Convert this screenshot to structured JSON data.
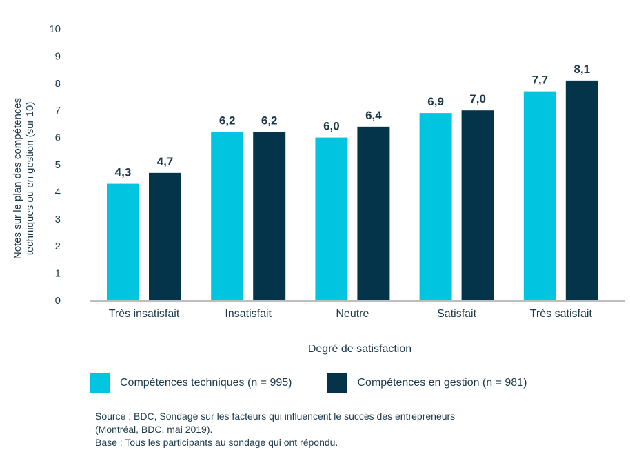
{
  "chart_data": {
    "type": "bar",
    "title": "",
    "xlabel": "Degré de satisfaction",
    "ylabel_lines": [
      "Notes sur le plan des compétences",
      "techniques ou en gestion (sur 10)"
    ],
    "ylim": [
      0,
      10
    ],
    "yticks": [
      "0",
      "1",
      "2",
      "3",
      "4",
      "5",
      "6",
      "7",
      "8",
      "9",
      "10"
    ],
    "categories": [
      "Très insatisfait",
      "Insatisfait",
      "Neutre",
      "Satisfait",
      "Très satisfait"
    ],
    "series": [
      {
        "name": "Compétences techniques (n = 995)",
        "color": "#00c4e0",
        "values": [
          4.3,
          6.2,
          6.0,
          6.9,
          7.7
        ],
        "labels": [
          "4,3",
          "6,2",
          "6,0",
          "6,9",
          "7,7"
        ]
      },
      {
        "name": "Compétences en gestion (n = 981)",
        "color": "#04344a",
        "values": [
          4.7,
          6.2,
          6.4,
          7.0,
          8.1
        ],
        "labels": [
          "4,7",
          "6,2",
          "6,4",
          "7,0",
          "8,1"
        ]
      }
    ],
    "grid": false,
    "legend_position": "bottom-left",
    "axis_color": "#bdbdbd"
  },
  "legend": {
    "items": [
      {
        "label": "Compétences techniques (n = 995)",
        "color": "#00c4e0"
      },
      {
        "label": "Compétences en gestion (n = 981)",
        "color": "#04344a"
      }
    ]
  },
  "notes": {
    "source_line1": "Source : BDC, Sondage sur les facteurs qui influencent le succès des entrepreneurs",
    "source_line2": "(Montréal, BDC, mai 2019).",
    "base": "Base : Tous les participants au sondage qui ont répondu."
  }
}
